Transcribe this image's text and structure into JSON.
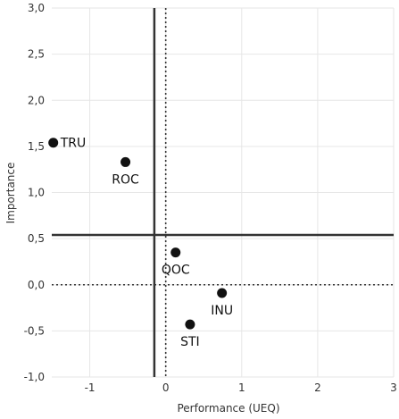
{
  "chart_data": {
    "type": "scatter",
    "xlabel": "Performance (UEQ)",
    "ylabel": "Importance",
    "xlim": [
      -1.5,
      3.0
    ],
    "ylim": [
      -1.0,
      3.0
    ],
    "x_ticks": [
      -1,
      0,
      1,
      2,
      3
    ],
    "y_ticks": [
      -1.0,
      -0.5,
      0.0,
      0.5,
      1.0,
      1.5,
      2.0,
      2.5,
      3.0
    ],
    "x_tick_labels": [
      "-1",
      "0",
      "1",
      "2",
      "3"
    ],
    "y_tick_labels": [
      "-1,0",
      "-0,5",
      "0,0",
      "0,5",
      "1,0",
      "1,5",
      "2,0",
      "2,5",
      "3,0"
    ],
    "grid": true,
    "points": [
      {
        "label": "TRU",
        "x": -1.48,
        "y": 1.54
      },
      {
        "label": "ROC",
        "x": -0.53,
        "y": 1.33
      },
      {
        "label": "QOC",
        "x": 0.13,
        "y": 0.35
      },
      {
        "label": "INU",
        "x": 0.74,
        "y": -0.09
      },
      {
        "label": "STI",
        "x": 0.32,
        "y": -0.43
      }
    ],
    "reference_lines": [
      {
        "orientation": "vertical",
        "value": -0.15,
        "style": "solid"
      },
      {
        "orientation": "horizontal",
        "value": 0.54,
        "style": "solid"
      },
      {
        "orientation": "vertical",
        "value": 0.0,
        "style": "dotted"
      },
      {
        "orientation": "horizontal",
        "value": 0.0,
        "style": "dotted"
      }
    ],
    "colors": {
      "points": "#111111",
      "reference_lines": "#333333",
      "grid": "#e6e6e6",
      "axis": "#333333"
    }
  }
}
